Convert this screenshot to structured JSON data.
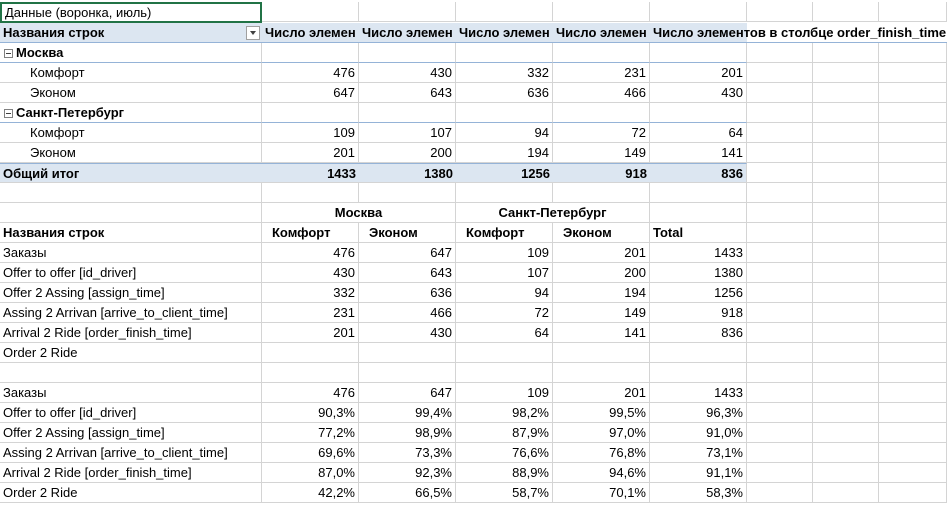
{
  "title_cell": "Данные (воронка, июль)",
  "pivot": {
    "row_labels_header": "Названия строк",
    "value_headers": [
      "Число элемен",
      "Число элемен",
      "Число элемен",
      "Число элемен",
      "Число элементов в столбце order_finish_time"
    ],
    "groups": [
      {
        "name": "Москва",
        "rows": [
          {
            "label": "Комфорт",
            "values": [
              "476",
              "430",
              "332",
              "231",
              "201"
            ]
          },
          {
            "label": "Эконом",
            "values": [
              "647",
              "643",
              "636",
              "466",
              "430"
            ]
          }
        ]
      },
      {
        "name": "Санкт-Петербург",
        "rows": [
          {
            "label": "Комфорт",
            "values": [
              "109",
              "107",
              "94",
              "72",
              "64"
            ]
          },
          {
            "label": "Эконом",
            "values": [
              "201",
              "200",
              "194",
              "149",
              "141"
            ]
          }
        ]
      }
    ],
    "grand_total": {
      "label": "Общий итог",
      "values": [
        "1433",
        "1380",
        "1256",
        "918",
        "836"
      ]
    }
  },
  "table2": {
    "city_headers": [
      "Москва",
      "Санкт-Петербург"
    ],
    "row_labels_header": "Названия строк",
    "col_headers": [
      "Комфорт",
      "Эконом",
      "Комфорт",
      "Эконом",
      "Total"
    ],
    "rows": [
      {
        "label": "Заказы",
        "values": [
          "476",
          "647",
          "109",
          "201",
          "1433"
        ]
      },
      {
        "label": "Offer to offer [id_driver]",
        "values": [
          "430",
          "643",
          "107",
          "200",
          "1380"
        ]
      },
      {
        "label": "Offer 2 Assing [assign_time]",
        "values": [
          "332",
          "636",
          "94",
          "194",
          "1256"
        ]
      },
      {
        "label": "Assing 2 Arrivan [arrive_to_client_time]",
        "values": [
          "231",
          "466",
          "72",
          "149",
          "918"
        ]
      },
      {
        "label": "Arrival 2 Ride  [order_finish_time]",
        "values": [
          "201",
          "430",
          "64",
          "141",
          "836"
        ]
      },
      {
        "label": "Order 2 Ride",
        "values": [
          "",
          "",
          "",
          "",
          ""
        ]
      }
    ]
  },
  "table3": {
    "rows": [
      {
        "label": "Заказы",
        "values": [
          "476",
          "647",
          "109",
          "201",
          "1433"
        ]
      },
      {
        "label": "Offer to offer [id_driver]",
        "values": [
          "90,3%",
          "99,4%",
          "98,2%",
          "99,5%",
          "96,3%"
        ]
      },
      {
        "label": "Offer 2 Assing [assign_time]",
        "values": [
          "77,2%",
          "98,9%",
          "87,9%",
          "97,0%",
          "91,0%"
        ]
      },
      {
        "label": "Assing 2 Arrivan [arrive_to_client_time]",
        "values": [
          "69,6%",
          "73,3%",
          "76,6%",
          "76,8%",
          "73,1%"
        ]
      },
      {
        "label": "Arrival 2 Ride  [order_finish_time]",
        "values": [
          "87,0%",
          "92,3%",
          "88,9%",
          "94,6%",
          "91,1%"
        ]
      },
      {
        "label": "Order 2 Ride",
        "values": [
          "42,2%",
          "66,5%",
          "58,7%",
          "70,1%",
          "58,3%"
        ]
      }
    ]
  }
}
